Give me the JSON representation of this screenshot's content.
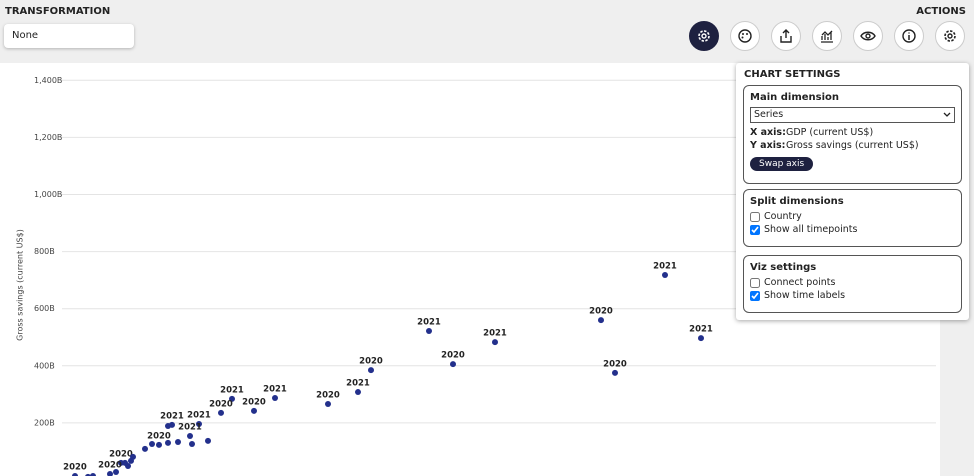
{
  "header": {
    "transformation_label": "TRANSFORMATION",
    "transformation_value": "None",
    "actions_label": "ACTIONS"
  },
  "chart_data": {
    "type": "scatter",
    "y_label": "Gross savings (current US$)",
    "ylim": [
      0,
      1450
    ],
    "xlim": [
      0,
      878
    ],
    "yticks": [
      {
        "value": 200,
        "label": "200B"
      },
      {
        "value": 400,
        "label": "400B"
      },
      {
        "value": 600,
        "label": "600B"
      },
      {
        "value": 800,
        "label": "800B"
      },
      {
        "value": 1000,
        "label": "1,000B"
      },
      {
        "value": 1200,
        "label": "1,200B"
      },
      {
        "value": 1400,
        "label": "1,400B"
      }
    ],
    "grid": true,
    "color": "#23308c",
    "x": [
      603,
      539,
      639,
      553,
      367,
      433,
      391,
      309,
      296,
      266,
      213,
      192,
      170,
      159,
      110,
      137,
      128,
      97,
      59,
      48,
      13,
      106,
      146,
      130,
      116,
      106,
      90,
      83,
      71,
      69,
      63,
      66,
      54,
      31,
      26
    ],
    "values": [
      718,
      560,
      497,
      375,
      522,
      483,
      406,
      385,
      308,
      266,
      287,
      242,
      284,
      235,
      193,
      196,
      154,
      123,
      60,
      21,
      14,
      189,
      137,
      126,
      133,
      130,
      126,
      109,
      81,
      67,
      60,
      49,
      28,
      14,
      11
    ],
    "time_labels": [
      "2021",
      "2020",
      "2021",
      "2020",
      "2021",
      "2021",
      "2020",
      "2020",
      "2021",
      "2020",
      "2021",
      "2020",
      "2021",
      "2020",
      "2021",
      "2021",
      "2021",
      "2020",
      "2020",
      "2020",
      "2020",
      null,
      null,
      null,
      null,
      null,
      null,
      null,
      null,
      null,
      null,
      null,
      null,
      null,
      null
    ]
  },
  "settings": {
    "title": "CHART SETTINGS",
    "main_dimension": {
      "title": "Main dimension",
      "select": "Series",
      "x_axis_label": "X axis:",
      "x_axis_value": "GDP (current US$)",
      "y_axis_label": "Y axis:",
      "y_axis_value": "Gross savings (current US$)",
      "button": "Swap axis"
    },
    "split_dimensions": {
      "title": "Split dimensions",
      "options": [
        {
          "label": "Country",
          "checked": false
        },
        {
          "label": "Show all timepoints",
          "checked": true
        }
      ]
    },
    "viz_settings": {
      "title": "Viz settings",
      "options": [
        {
          "label": "Connect points",
          "checked": false
        },
        {
          "label": "Show time labels",
          "checked": true
        }
      ]
    }
  }
}
